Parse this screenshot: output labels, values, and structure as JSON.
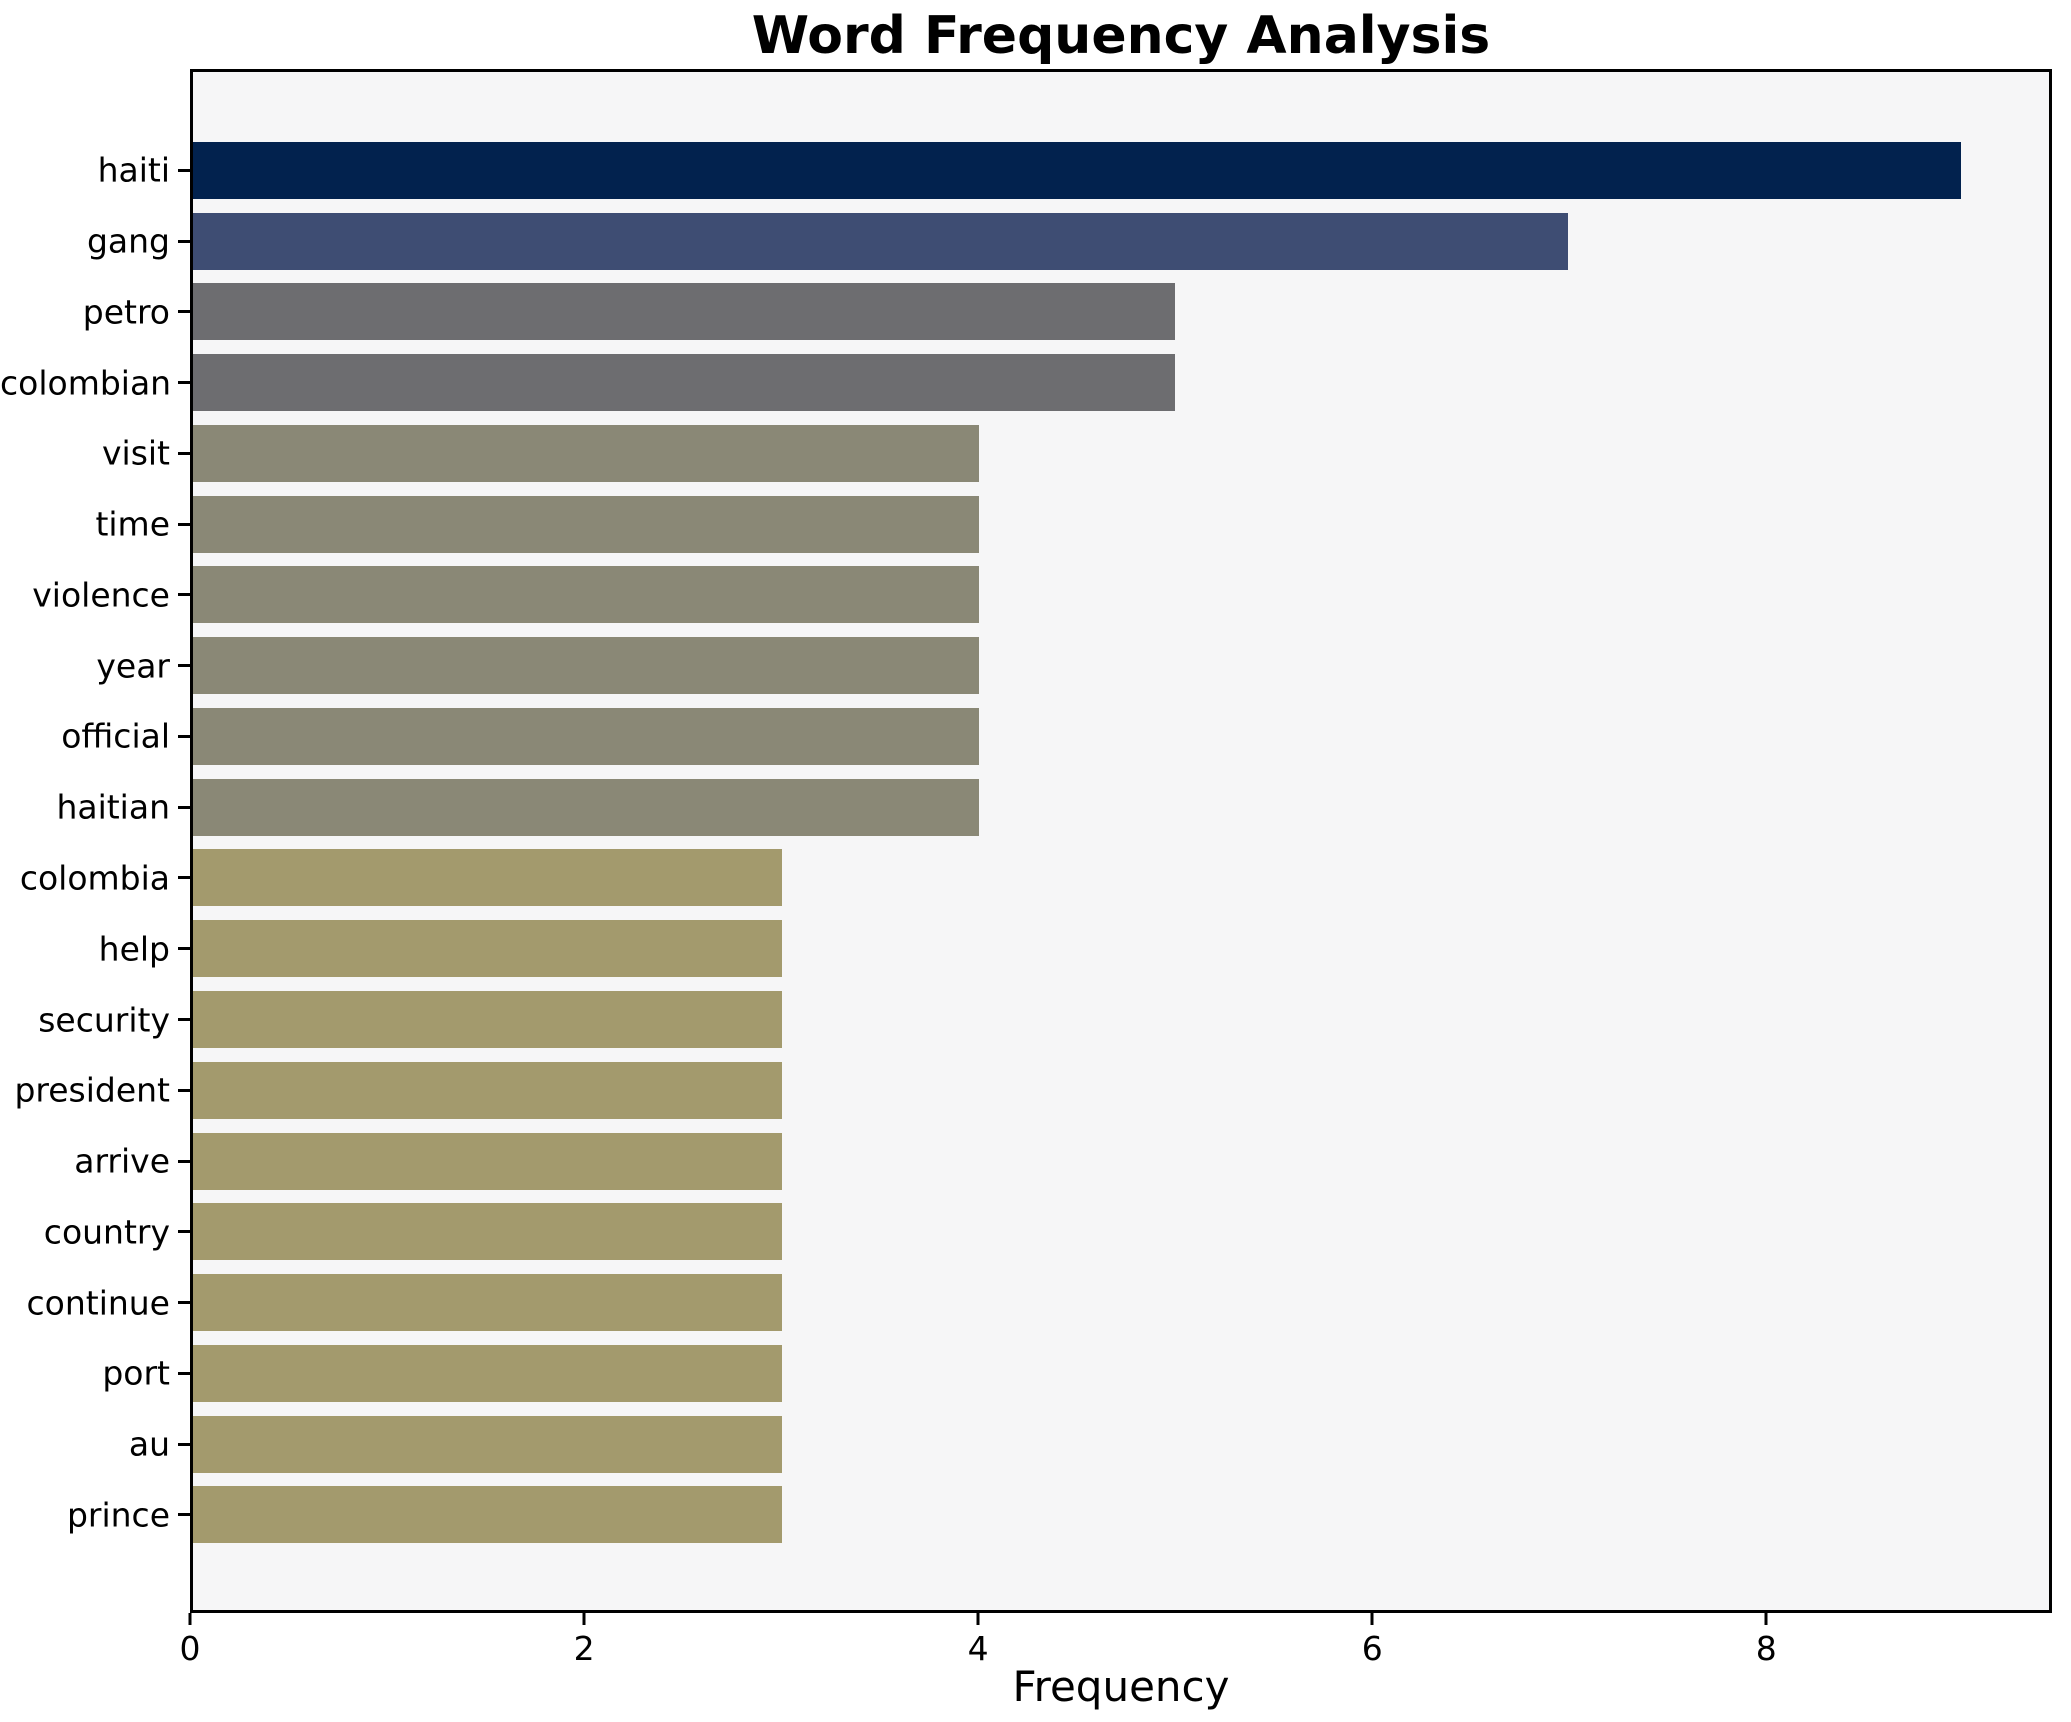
{
  "title": "Word Frequency Analysis",
  "chart_data": {
    "type": "bar",
    "orientation": "horizontal",
    "title": "Word Frequency Analysis",
    "xlabel": "Frequency",
    "ylabel": "",
    "categories": [
      "haiti",
      "gang",
      "petro",
      "colombian",
      "visit",
      "time",
      "violence",
      "year",
      "official",
      "haitian",
      "colombia",
      "help",
      "security",
      "president",
      "arrive",
      "country",
      "continue",
      "port",
      "au",
      "prince"
    ],
    "values": [
      9,
      7,
      5,
      5,
      4,
      4,
      4,
      4,
      4,
      4,
      3,
      3,
      3,
      3,
      3,
      3,
      3,
      3,
      3,
      3
    ],
    "bar_colors": [
      "#02224e",
      "#3e4d73",
      "#6d6d70",
      "#6d6d70",
      "#8a8876",
      "#8a8876",
      "#8a8876",
      "#8a8876",
      "#8a8876",
      "#8a8876",
      "#a39a6d",
      "#a39a6d",
      "#a39a6d",
      "#a39a6d",
      "#a39a6d",
      "#a39a6d",
      "#a39a6d",
      "#a39a6d",
      "#a39a6d",
      "#a39a6d"
    ],
    "xlim": [
      0,
      9.45
    ],
    "xticks": [
      0,
      2,
      4,
      6,
      8
    ],
    "grid": false,
    "legend_position": "none",
    "plot_bg_color": "#f6f6f7",
    "figure_bg_color": "#ffffff",
    "axis_border_color": "#000000",
    "title_color": "#000000",
    "tick_label_color": "#000000"
  }
}
